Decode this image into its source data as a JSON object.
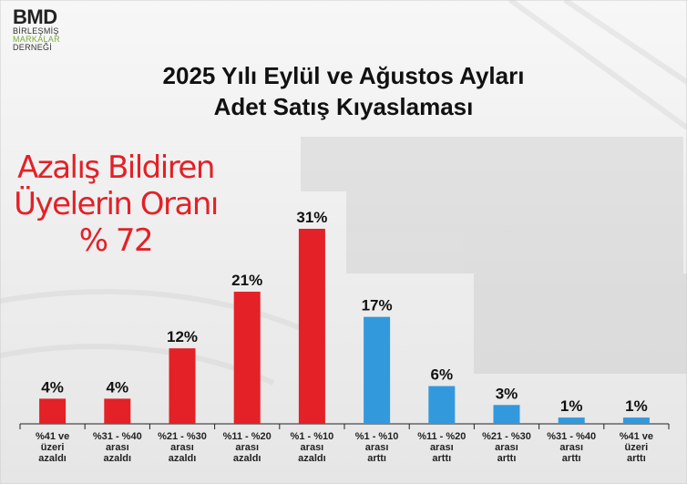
{
  "logo": {
    "name": "BMD",
    "line1": "BİRLEŞMİŞ",
    "line2": "MARKALAR",
    "line3": "DERNEĞİ"
  },
  "callout": {
    "line1": "Azalış Bildiren",
    "line2": "Üyelerin Oranı",
    "line3": "% 72"
  },
  "colors": {
    "decrease": "#e32127",
    "increase": "#3399dd",
    "callout": "#e32127"
  },
  "chart_data": {
    "type": "bar",
    "title": "2025 Yılı Eylül ve Ağustos Ayları",
    "subtitle": "Adet Satış Kıyaslaması",
    "categories": [
      [
        "%41 ve",
        "üzeri",
        "azaldı"
      ],
      [
        "%31 - %40",
        "arası",
        "azaldı"
      ],
      [
        "%21 - %30",
        "arası",
        "azaldı"
      ],
      [
        "%11 - %20",
        "arası",
        "azaldı"
      ],
      [
        "%1 - %10",
        "arası",
        "azaldı"
      ],
      [
        "%1 - %10",
        "arası",
        "arttı"
      ],
      [
        "%11 - %20",
        "arası",
        "arttı"
      ],
      [
        "%21 - %30",
        "arası",
        "arttı"
      ],
      [
        "%31 - %40",
        "arası",
        "arttı"
      ],
      [
        "%41 ve",
        "üzeri",
        "arttı"
      ]
    ],
    "values": [
      4,
      4,
      12,
      21,
      31,
      17,
      6,
      3,
      1,
      1
    ],
    "labels": [
      "4%",
      "4%",
      "12%",
      "21%",
      "31%",
      "17%",
      "6%",
      "3%",
      "1%",
      "1%"
    ],
    "bar_colors": [
      "#e32127",
      "#e32127",
      "#e32127",
      "#e32127",
      "#e32127",
      "#3399dd",
      "#3399dd",
      "#3399dd",
      "#3399dd",
      "#3399dd"
    ],
    "ylim": [
      0,
      31
    ],
    "grid": false,
    "legend": "none"
  }
}
